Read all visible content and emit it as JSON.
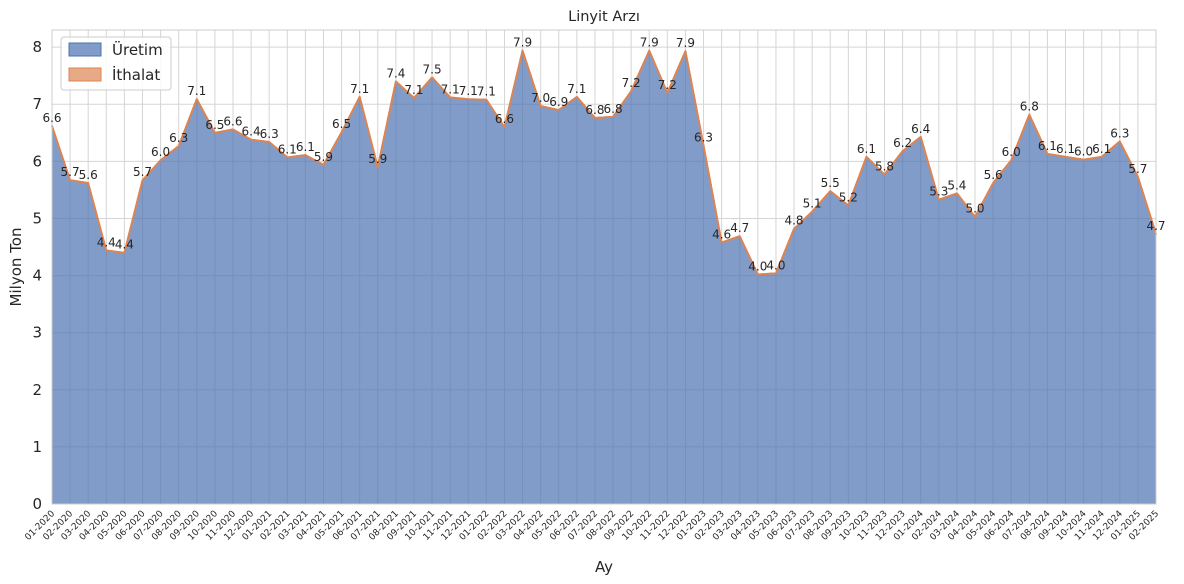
{
  "chart_data": {
    "type": "area",
    "title": "Linyit Arzı",
    "xlabel": "Ay",
    "ylabel": "Milyon Ton",
    "ylim": [
      0,
      8.3
    ],
    "yticks": [
      0,
      1,
      2,
      3,
      4,
      5,
      6,
      7,
      8
    ],
    "stacked": true,
    "grid": true,
    "legend_position": "top-left",
    "categories": [
      "01-2020",
      "02-2020",
      "03-2020",
      "04-2020",
      "05-2020",
      "06-2020",
      "07-2020",
      "08-2020",
      "09-2020",
      "10-2020",
      "11-2020",
      "12-2020",
      "01-2021",
      "02-2021",
      "03-2021",
      "04-2021",
      "05-2021",
      "06-2021",
      "07-2021",
      "08-2021",
      "09-2021",
      "10-2021",
      "11-2021",
      "12-2021",
      "01-2022",
      "02-2022",
      "03-2022",
      "04-2022",
      "05-2022",
      "06-2022",
      "07-2022",
      "08-2022",
      "09-2022",
      "10-2022",
      "11-2022",
      "12-2022",
      "01-2023",
      "02-2023",
      "03-2023",
      "04-2023",
      "05-2023",
      "06-2023",
      "07-2023",
      "08-2023",
      "09-2023",
      "10-2023",
      "11-2023",
      "12-2023",
      "01-2024",
      "02-2024",
      "03-2024",
      "04-2024",
      "05-2024",
      "06-2024",
      "07-2024",
      "08-2024",
      "09-2024",
      "10-2024",
      "11-2024",
      "12-2024",
      "01-2025",
      "02-2025"
    ],
    "series": [
      {
        "name": "Üretim",
        "color": "#4c72b0",
        "values": [
          6.62,
          5.67,
          5.62,
          4.44,
          4.4,
          5.67,
          6.02,
          6.27,
          7.09,
          6.5,
          6.56,
          6.38,
          6.34,
          6.07,
          6.11,
          5.94,
          6.51,
          7.13,
          5.9,
          7.4,
          7.11,
          7.47,
          7.12,
          7.09,
          7.08,
          6.6,
          7.94,
          6.97,
          6.9,
          7.13,
          6.76,
          6.78,
          7.23,
          7.94,
          7.2,
          7.93,
          6.28,
          4.58,
          4.69,
          4.02,
          4.04,
          4.82,
          5.12,
          5.48,
          5.23,
          6.08,
          5.77,
          6.18,
          6.43,
          5.33,
          5.44,
          5.03,
          5.62,
          6.02,
          6.82,
          6.13,
          6.08,
          6.03,
          6.08,
          6.35,
          5.73,
          4.73
        ]
      },
      {
        "name": "İthalat",
        "color": "#dd8452",
        "values": [
          0,
          0,
          0,
          0,
          0,
          0,
          0,
          0,
          0,
          0,
          0,
          0,
          0,
          0,
          0,
          0,
          0,
          0,
          0,
          0,
          0,
          0,
          0,
          0,
          0,
          0,
          0,
          0,
          0,
          0,
          0,
          0,
          0,
          0,
          0,
          0,
          0,
          0,
          0,
          0,
          0,
          0,
          0,
          0,
          0,
          0,
          0,
          0,
          0,
          0,
          0,
          0,
          0,
          0,
          0,
          0,
          0,
          0,
          0,
          0,
          0,
          0
        ]
      }
    ],
    "data_labels": [
      "6.6",
      "5.7",
      "5.6",
      "4.4",
      "4.4",
      "5.7",
      "6.0",
      "6.3",
      "7.1",
      "6.5",
      "6.6",
      "6.4",
      "6.3",
      "6.1",
      "6.1",
      "5.9",
      "6.5",
      "7.1",
      "5.9",
      "7.4",
      "7.1",
      "7.5",
      "7.1",
      "7.1",
      "7.1",
      "6.6",
      "7.9",
      "7.0",
      "6.9",
      "7.1",
      "6.8",
      "6.8",
      "7.2",
      "7.9",
      "7.2",
      "7.9",
      "6.3",
      "4.6",
      "4.7",
      "4.0",
      "4.0",
      "4.8",
      "5.1",
      "5.5",
      "5.2",
      "6.1",
      "5.8",
      "6.2",
      "6.4",
      "5.3",
      "5.4",
      "5.0",
      "5.6",
      "6.0",
      "6.8",
      "6.1",
      "6.1",
      "6.0",
      "6.1",
      "6.3",
      "5.7",
      "4.7"
    ]
  }
}
